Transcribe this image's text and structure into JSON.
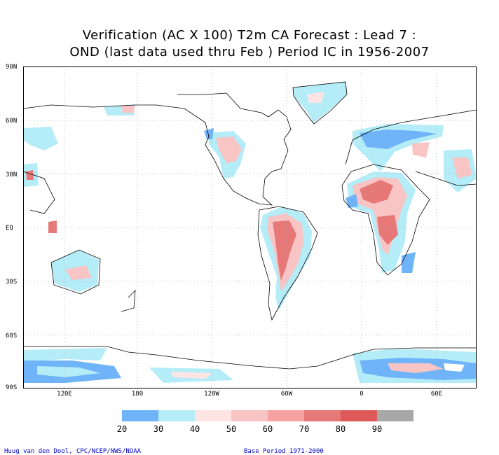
{
  "title": {
    "line1": "Verification (AC X 100) T2m CA Forecast : Lead 7 :",
    "line2": "OND (last data used thru Feb ) Period IC in 1956-2007"
  },
  "lat_labels": [
    "90N",
    "60N",
    "30N",
    "EQ",
    "30S",
    "60S",
    "90S"
  ],
  "lon_labels": [
    "120E",
    "180",
    "120W",
    "60W",
    "0",
    "60E"
  ],
  "colorbar": {
    "labels": [
      "20",
      "30",
      "40",
      "50",
      "60",
      "70",
      "80",
      "90"
    ],
    "colors": [
      "#6fb4f8",
      "#b4ecf8",
      "#ffe4e4",
      "#f8c4c4",
      "#f4a2a2",
      "#e67878",
      "#de5a5a",
      "#a8a8a8"
    ]
  },
  "credits": {
    "author": "Huug van den Dool, CPC/NCEP/NWS/NOAA",
    "base_period": "Base Period 1971-2000"
  }
}
